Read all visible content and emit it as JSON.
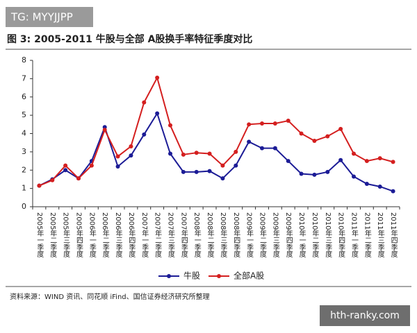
{
  "watermark_top": "TG: MYYJJPP",
  "watermark_bottom": "hth-ranky.com",
  "chart_data": {
    "type": "line",
    "title": "图 3:  2005-2011 牛股与全部 A股换手率特征季度对比",
    "source": "资料来源：WIND 资讯、同花顺 iFind、国信证券经济研究所整理",
    "categories": [
      "2005年一季度",
      "2005年二季度",
      "2005年三季度",
      "2005年四季度",
      "2006年一季度",
      "2006年二季度",
      "2006年三季度",
      "2006年四季度",
      "2007年一季度",
      "2007年二季度",
      "2007年三季度",
      "2007年四季度",
      "2008年一季度",
      "2008年二季度",
      "2008年三季度",
      "2008年四季度",
      "2009年一季度",
      "2009年二季度",
      "2009年三季度",
      "2009年四季度",
      "2010年一季度",
      "2010年二季度",
      "2010年三季度",
      "2010年四季度",
      "2011年一季度",
      "2011年二季度",
      "2011年三季度",
      "2011年四季度"
    ],
    "series": [
      {
        "name": "牛股",
        "color": "#1c1c96",
        "values": [
          1.15,
          1.5,
          2.0,
          1.55,
          2.5,
          4.35,
          2.2,
          2.8,
          3.95,
          5.1,
          2.9,
          1.9,
          1.9,
          1.95,
          1.55,
          2.25,
          3.55,
          3.2,
          3.2,
          2.5,
          1.8,
          1.75,
          1.9,
          2.55,
          1.65,
          1.25,
          1.1,
          0.85
        ]
      },
      {
        "name": "全部A股",
        "color": "#d41f1f",
        "values": [
          1.15,
          1.45,
          2.25,
          1.55,
          2.25,
          4.2,
          2.75,
          3.3,
          5.7,
          7.05,
          4.45,
          2.85,
          2.95,
          2.9,
          2.25,
          3.0,
          4.5,
          4.55,
          4.55,
          4.7,
          4.0,
          3.6,
          3.85,
          4.25,
          2.9,
          2.5,
          2.65,
          2.45
        ]
      }
    ],
    "ylim": [
      0,
      8
    ],
    "yticks": [
      0,
      1,
      2,
      3,
      4,
      5,
      6,
      7,
      8
    ],
    "grid": false
  }
}
